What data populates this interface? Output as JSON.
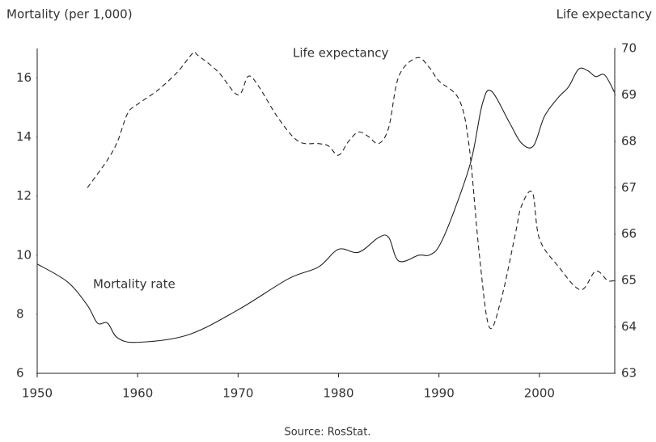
{
  "chart_data": {
    "type": "line",
    "y_axis_label": "Mortality (per 1,000)",
    "y2_axis_label": "Life expectancy",
    "annotations": [
      "Life expectancy",
      "Mortality rate"
    ],
    "source": "Source: RosStat.",
    "xlim": [
      1950,
      2007.5
    ],
    "xticks": [
      1950,
      1960,
      1970,
      1980,
      1990,
      2000
    ],
    "ylim": [
      6,
      17
    ],
    "yticks": [
      6,
      8,
      10,
      12,
      14,
      16
    ],
    "y2lim": [
      63,
      70
    ],
    "y2ticks": [
      63,
      64,
      65,
      66,
      67,
      68,
      69,
      70
    ],
    "series": [
      {
        "name": "Mortality rate",
        "color": "#222",
        "dashed": false,
        "x": [
          1950,
          1953,
          1955,
          1956,
          1957,
          1958,
          1960,
          1965,
          1970,
          1975,
          1978,
          1980,
          1982,
          1984,
          1985,
          1986,
          1988,
          1989,
          1990,
          1991.4,
          1993.2,
          1994.3,
          1995.2,
          1997,
          1998.2,
          1999.4,
          2000.5,
          2001.9,
          2002.9,
          2003.9,
          2004.8,
          2005.6,
          2006.5,
          2007.5
        ],
        "values": [
          9.7,
          9.1,
          8.3,
          7.7,
          7.7,
          7.2,
          7.05,
          7.3,
          8.15,
          9.2,
          9.6,
          10.2,
          10.1,
          10.6,
          10.6,
          9.8,
          10.0,
          10.0,
          10.3,
          11.4,
          13.2,
          15.1,
          15.56,
          14.5,
          13.8,
          13.7,
          14.7,
          15.35,
          15.7,
          16.3,
          16.25,
          16.05,
          16.1,
          15.5
        ]
      },
      {
        "name": "Life expectancy",
        "color": "#222",
        "dashed": true,
        "axis": "y2",
        "x": [
          1955,
          1957,
          1958,
          1959,
          1960,
          1962,
          1964,
          1965.5,
          1966,
          1968,
          1970,
          1971,
          1972,
          1974,
          1976,
          1978,
          1979,
          1980,
          1981,
          1982,
          1983,
          1984,
          1985,
          1986,
          1987.8,
          1989,
          1990,
          1992,
          1993,
          1994,
          1995,
          1996.2,
          1997.6,
          1998.2,
          1999.3,
          2000,
          2001.9,
          2004.1,
          2005.6,
          2006.8,
          2007.5
        ],
        "values": [
          67.0,
          67.6,
          68.0,
          68.6,
          68.8,
          69.1,
          69.5,
          69.9,
          69.85,
          69.5,
          69.0,
          69.4,
          69.2,
          68.5,
          68.0,
          67.95,
          67.9,
          67.7,
          68.0,
          68.2,
          68.1,
          67.95,
          68.3,
          69.4,
          69.8,
          69.6,
          69.3,
          68.9,
          67.9,
          65.6,
          64.0,
          64.6,
          66.0,
          66.6,
          66.9,
          65.9,
          65.3,
          64.8,
          65.2,
          65.0,
          65.0
        ]
      }
    ]
  }
}
